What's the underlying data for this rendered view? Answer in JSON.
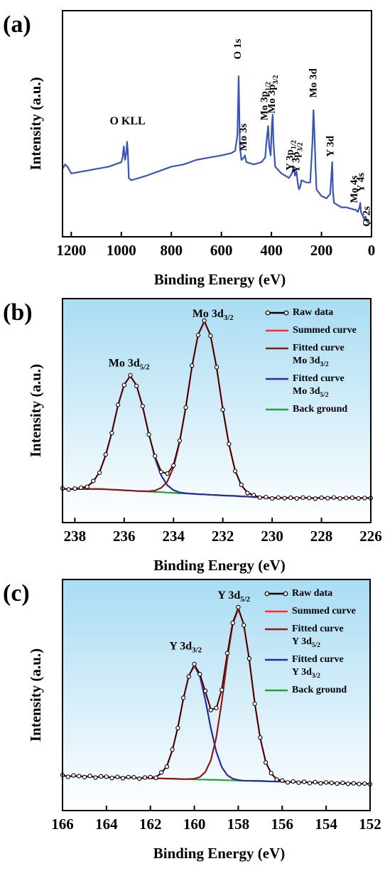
{
  "chart_data": [
    {
      "type": "line",
      "label": "(a)",
      "x_label": "Binding Energy (eV)",
      "y_label": "Intensity (a.u.)",
      "xlim": [
        1235,
        0
      ],
      "ylim": [
        0,
        100
      ],
      "xticks": [
        1200,
        1000,
        800,
        600,
        400,
        200,
        0
      ],
      "x": [
        1235,
        1225,
        1215,
        1200,
        1150,
        1100,
        1050,
        1000,
        995,
        990,
        985,
        980,
        977,
        974,
        970,
        960,
        900,
        850,
        800,
        750,
        700,
        650,
        600,
        560,
        545,
        536,
        531,
        526,
        520,
        510,
        506,
        500,
        470,
        440,
        425,
        418,
        413,
        409,
        403,
        398,
        395,
        392,
        385,
        360,
        330,
        318,
        311,
        306,
        300,
        295,
        290,
        285,
        280,
        260,
        245,
        236,
        232,
        228,
        224,
        220,
        200,
        180,
        165,
        160,
        157,
        154,
        150,
        120,
        100,
        70,
        63,
        55,
        48,
        45,
        42,
        30,
        24,
        20,
        10,
        0
      ],
      "series": [
        {
          "color": "#3a55b4",
          "values": [
            30,
            32,
            31,
            28,
            29,
            30,
            31,
            33,
            35,
            40,
            34,
            37,
            42,
            38,
            26,
            25,
            27,
            29,
            31,
            32,
            34,
            35,
            36,
            37,
            38,
            45,
            71,
            40,
            34,
            35,
            36,
            33,
            32,
            33,
            35,
            44,
            49,
            40,
            36,
            50,
            54,
            42,
            31,
            28,
            26,
            28,
            31,
            27,
            29,
            24,
            21,
            22,
            25,
            24,
            24,
            42,
            56,
            46,
            32,
            21,
            18,
            17,
            19,
            28,
            33,
            20,
            15,
            13,
            13,
            12,
            12,
            11,
            13,
            15,
            11,
            8,
            9,
            7,
            6,
            6
          ]
        }
      ],
      "annotations": [
        {
          "text": "O KLL",
          "x": 975,
          "y": 51,
          "rotate": false
        },
        {
          "text": "O 1s",
          "x": 531,
          "y": 83,
          "rotate": true
        },
        {
          "text": "Mo 3s",
          "x": 508,
          "y": 44,
          "rotate": true
        },
        {
          "text": "Mo 3p",
          "sub": "1/2",
          "x": 425,
          "y": 60,
          "rotate": true
        },
        {
          "text": "Mo 3p",
          "sub": "3/2",
          "x": 395,
          "y": 63,
          "rotate": true
        },
        {
          "text": "Y 3p",
          "sub": "1/2",
          "x": 322,
          "y": 36,
          "rotate": true
        },
        {
          "text": "Y 3p",
          "sub": "3/2",
          "x": 296,
          "y": 35,
          "rotate": true
        },
        {
          "text": "Mo 3d",
          "x": 228,
          "y": 68,
          "rotate": true
        },
        {
          "text": "Y 3d",
          "x": 160,
          "y": 40,
          "rotate": true
        },
        {
          "text": "Mo 4s",
          "x": 65,
          "y": 21,
          "rotate": true
        },
        {
          "text": "Y 4s",
          "x": 38,
          "y": 24,
          "rotate": true
        },
        {
          "text": "O 2s",
          "x": 16,
          "y": 9,
          "rotate": true
        }
      ]
    },
    {
      "type": "line",
      "label": "(b)",
      "x_label": "Binding Energy (eV)",
      "y_label": "Intensity (a.u.)",
      "xlim": [
        238.5,
        226
      ],
      "ylim": [
        0,
        100
      ],
      "xticks": [
        238,
        236,
        234,
        232,
        230,
        228,
        226
      ],
      "plot_background": {
        "top": "#a9dcf3",
        "bottom": "#ffffff"
      },
      "x": [
        238.5,
        238.25,
        238,
        237.75,
        237.5,
        237.25,
        237,
        236.75,
        236.5,
        236.25,
        236,
        235.75,
        235.5,
        235.25,
        235,
        234.75,
        234.5,
        234.25,
        234,
        233.75,
        233.5,
        233.25,
        233,
        232.75,
        232.5,
        232.25,
        232,
        231.75,
        231.5,
        231.25,
        231,
        230.75,
        230.5,
        230.25,
        230,
        229.75,
        229.5,
        229.25,
        229,
        228.75,
        228.5,
        228.25,
        228,
        227.75,
        227.5,
        227.25,
        227,
        226.75,
        226.5,
        226.25,
        226
      ],
      "series": [
        {
          "name": "Raw data",
          "color": "#000000",
          "marker": "circle",
          "values": [
            15.3,
            14.8,
            15.2,
            15.6,
            16.0,
            18.6,
            22.3,
            30.4,
            40.0,
            52.6,
            61.4,
            65.8,
            61.0,
            52.0,
            39.3,
            29.7,
            22.6,
            21.9,
            25.5,
            36.6,
            51.4,
            70.1,
            83.7,
            90.2,
            83.4,
            69.4,
            50.4,
            35.1,
            23.0,
            16.9,
            13.2,
            12.3,
            11.2,
            11.4,
            10.8,
            11.2,
            10.9,
            11.1,
            10.8,
            11.2,
            11.0,
            10.7,
            11.1,
            10.9,
            11.2,
            10.8,
            11.0,
            11.1,
            10.8,
            11.0,
            10.9
          ]
        },
        {
          "name": "Summed curve",
          "color": "#ff2a2a",
          "values": [
            15.0,
            15.0,
            15.1,
            15.4,
            16.2,
            18.3,
            22.6,
            29.9,
            40.4,
            52.2,
            61.7,
            65.3,
            61.4,
            51.6,
            39.7,
            29.3,
            23.0,
            21.6,
            25.9,
            36.2,
            51.8,
            69.6,
            84.1,
            89.6,
            83.8,
            69.0,
            50.8,
            34.7,
            23.3,
            16.6,
            13.5,
            12.0,
            11.5,
            11.1,
            11.0,
            11.0,
            11.0,
            11.0,
            11.0,
            11.0,
            11.0,
            11.0,
            11.0,
            11.0,
            11.0,
            11.0,
            11.0,
            11.0,
            11.0,
            11.0,
            11.0
          ]
        },
        {
          "name": "Fitted curve",
          "name_line2": {
            "text": "Mo 3d",
            "sub": "3/2"
          },
          "color": "#8b1a1a",
          "values": [
            15,
            15,
            15,
            15,
            15,
            15,
            15,
            14.9,
            14.7,
            14.6,
            14.4,
            14.3,
            14.1,
            14.0,
            14.0,
            14.3,
            15.5,
            18.3,
            24.7,
            35.8,
            51.7,
            69.6,
            84.1,
            89.6,
            83.8,
            69.0,
            50.8,
            34.7,
            23.3,
            16.6,
            13.5,
            12.0,
            11.5,
            11.1,
            11.0,
            11.0,
            11.0,
            11.0,
            11.0,
            11.0,
            11.0,
            11.0,
            11.0,
            11.0,
            11.0,
            11.0,
            11.0,
            11.0,
            11.0,
            11.0,
            11.0
          ]
        },
        {
          "name": "Fitted curve",
          "name_line2": {
            "text": "Mo 3d",
            "sub": "5/2"
          },
          "color": "#2b2b9c",
          "values": [
            15.0,
            15.0,
            15.1,
            15.4,
            16.2,
            18.3,
            22.6,
            29.9,
            40.4,
            52.2,
            61.7,
            65.3,
            61.4,
            51.6,
            39.6,
            28.7,
            21.1,
            16.7,
            14.5,
            13.5,
            13.1,
            12.9,
            12.7,
            12.6,
            12.4,
            12.3,
            12.1,
            12.0,
            11.9,
            11.7,
            11.6,
            11.4,
            11.3,
            11.1,
            11.0,
            11.0,
            11.0,
            11.0,
            11.0,
            11.0,
            11.0,
            11.0,
            11.0,
            11.0,
            11.0,
            11.0,
            11.0,
            11.0,
            11.0,
            11.0,
            11.0
          ]
        },
        {
          "name": "Back ground",
          "color": "#22a03a",
          "values": [
            15,
            15,
            15,
            15,
            15,
            15,
            15,
            14.9,
            14.7,
            14.6,
            14.4,
            14.3,
            14.1,
            14.0,
            13.9,
            13.7,
            13.6,
            13.4,
            13.3,
            13.1,
            13.0,
            12.9,
            12.7,
            12.6,
            12.4,
            12.3,
            12.1,
            12.0,
            11.9,
            11.7,
            11.6,
            11.4,
            11.3,
            11.1,
            11.0,
            11.0,
            11.0,
            11.0,
            11.0,
            11.0,
            11.0,
            11.0,
            11.0,
            11.0,
            11.0,
            11.0,
            11.0,
            11.0,
            11.0,
            11.0,
            11.0
          ]
        }
      ],
      "annotations": [
        {
          "text": "Mo 3d",
          "sub": "5/2",
          "x": 235.8,
          "y": 71,
          "rotate": false
        },
        {
          "text": "Mo 3d",
          "sub": "3/2",
          "x": 232.4,
          "y": 93,
          "rotate": false
        }
      ]
    },
    {
      "type": "line",
      "label": "(c)",
      "x_label": "Binding Energy (eV)",
      "y_label": "Intensity (a.u.)",
      "xlim": [
        166,
        152
      ],
      "ylim": [
        0,
        100
      ],
      "xticks": [
        166,
        164,
        162,
        160,
        158,
        156,
        154,
        152
      ],
      "plot_background": {
        "top": "#a9dcf3",
        "bottom": "#ffffff"
      },
      "x": [
        166,
        165.75,
        165.5,
        165.25,
        165,
        164.75,
        164.5,
        164.25,
        164,
        163.75,
        163.5,
        163.25,
        163,
        162.75,
        162.5,
        162.25,
        162,
        161.75,
        161.5,
        161.25,
        161,
        160.75,
        160.5,
        160.25,
        160,
        159.75,
        159.5,
        159.25,
        159,
        158.75,
        158.5,
        158.25,
        158,
        157.75,
        157.5,
        157.25,
        157,
        156.75,
        156.5,
        156.25,
        156,
        155.75,
        155.5,
        155.25,
        155,
        154.75,
        154.5,
        154.25,
        154,
        153.75,
        153.5,
        153.25,
        153,
        152.75,
        152.5,
        152.25,
        152
      ],
      "series": [
        {
          "name": "Raw data",
          "color": "#000000",
          "marker": "circle",
          "values": [
            15.4,
            14.6,
            15.2,
            14.9,
            14.5,
            15.0,
            14.3,
            14.8,
            14.7,
            14.1,
            14.6,
            14.0,
            14.5,
            14.4,
            13.8,
            14.3,
            14.5,
            14.2,
            16.5,
            19.0,
            26.4,
            35.7,
            48.8,
            58.0,
            63.4,
            59.0,
            51.8,
            43.5,
            44.4,
            52.2,
            68.1,
            81.2,
            88.0,
            80.2,
            65.8,
            46.2,
            31.6,
            20.8,
            16.2,
            13.4,
            13.0,
            12.2,
            12.6,
            12.1,
            12.5,
            11.9,
            12.3,
            11.8,
            12.2,
            12.0,
            11.7,
            12.0,
            11.6,
            11.8,
            11.5,
            11.7,
            11.4
          ]
        },
        {
          "name": "Summed curve",
          "color": "#ff2a2a",
          "values": [
            15.0,
            14.9,
            14.9,
            14.8,
            14.8,
            14.7,
            14.6,
            14.6,
            14.5,
            14.4,
            14.4,
            14.3,
            14.3,
            14.2,
            14.1,
            14.1,
            14.2,
            14.6,
            16.1,
            19.4,
            26.0,
            36.1,
            48.2,
            58.5,
            62.8,
            59.4,
            51.3,
            44.1,
            43.9,
            52.7,
            67.6,
            81.7,
            87.2,
            80.8,
            65.2,
            46.7,
            31.2,
            21.1,
            15.9,
            13.7,
            12.8,
            12.4,
            12.4,
            12.3,
            12.3,
            12.2,
            12.1,
            12.1,
            12.0,
            11.9,
            11.9,
            11.8,
            11.8,
            11.7,
            11.6,
            11.6,
            11.5
          ]
        },
        {
          "name": "Fitted curve",
          "name_line2": {
            "text": "Y 3d",
            "sub": "5/2"
          },
          "color": "#8b1a1a",
          "values": [
            15.0,
            14.9,
            14.9,
            14.8,
            14.8,
            14.7,
            14.6,
            14.6,
            14.5,
            14.4,
            14.4,
            14.3,
            14.3,
            14.2,
            14.1,
            14.1,
            14.0,
            13.9,
            13.9,
            13.8,
            13.8,
            13.7,
            13.6,
            13.6,
            13.8,
            14.5,
            16.7,
            21.7,
            31.7,
            47.1,
            65.4,
            81.0,
            87.0,
            80.8,
            65.2,
            46.7,
            31.2,
            21.1,
            15.9,
            13.7,
            12.8,
            12.4,
            12.4,
            12.3,
            12.3,
            12.2,
            12.1,
            12.1,
            12.0,
            11.9,
            11.9,
            11.8,
            11.8,
            11.7,
            11.6,
            11.6,
            11.5
          ]
        },
        {
          "name": "Fitted curve",
          "name_line2": {
            "text": "Y 3d",
            "sub": "3/2"
          },
          "color": "#2b2b9c",
          "values": [
            15.0,
            14.9,
            14.9,
            14.8,
            14.8,
            14.7,
            14.6,
            14.6,
            14.5,
            14.4,
            14.4,
            14.3,
            14.3,
            14.2,
            14.1,
            14.1,
            14.2,
            14.6,
            16.1,
            19.4,
            26.0,
            36.1,
            48.2,
            58.5,
            62.5,
            58.3,
            48.0,
            35.7,
            25.5,
            18.8,
            15.3,
            13.8,
            13.2,
            12.9,
            12.9,
            12.8,
            12.8,
            12.7,
            12.6,
            12.6,
            12.5,
            12.4,
            12.4,
            12.3,
            12.3,
            12.2,
            12.1,
            12.1,
            12.0,
            11.9,
            11.9,
            11.8,
            11.8,
            11.7,
            11.6,
            11.6,
            11.5
          ]
        },
        {
          "name": "Back ground",
          "color": "#22a03a",
          "values": [
            15.0,
            14.9,
            14.9,
            14.8,
            14.8,
            14.7,
            14.6,
            14.6,
            14.5,
            14.4,
            14.4,
            14.3,
            14.3,
            14.2,
            14.1,
            14.1,
            14.0,
            13.9,
            13.9,
            13.8,
            13.8,
            13.7,
            13.6,
            13.6,
            13.5,
            13.4,
            13.4,
            13.3,
            13.3,
            13.2,
            13.1,
            13.1,
            13.0,
            12.9,
            12.9,
            12.8,
            12.8,
            12.7,
            12.6,
            12.6,
            12.5,
            12.4,
            12.4,
            12.3,
            12.3,
            12.2,
            12.1,
            12.1,
            12.0,
            11.9,
            11.9,
            11.8,
            11.8,
            11.7,
            11.6,
            11.6,
            11.5
          ]
        }
      ],
      "annotations": [
        {
          "text": "Y 3d",
          "sub": "3/2",
          "x": 160.4,
          "y": 71,
          "rotate": false
        },
        {
          "text": "Y 3d",
          "sub": "5/2",
          "x": 158.2,
          "y": 93,
          "rotate": false
        }
      ]
    }
  ]
}
